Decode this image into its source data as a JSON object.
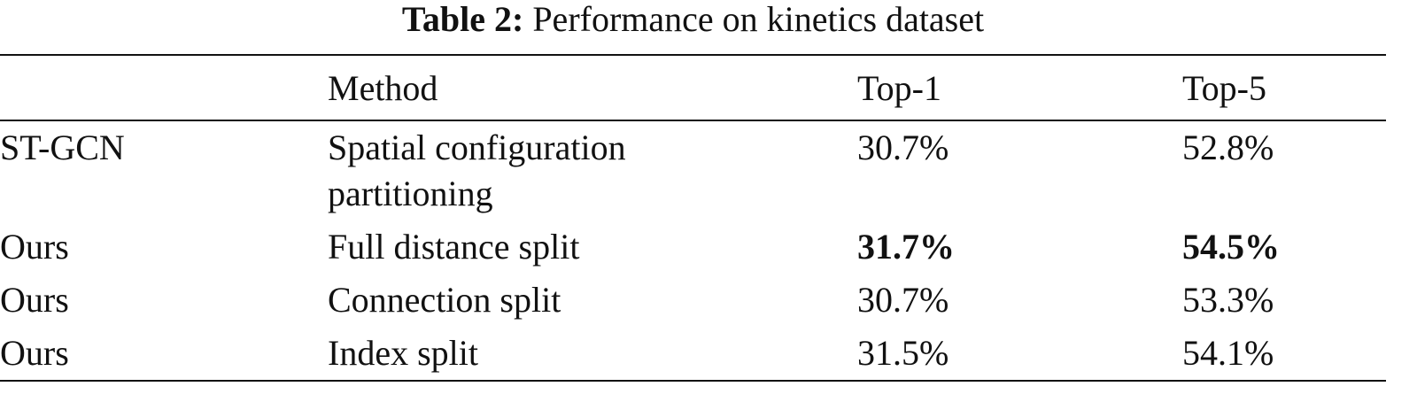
{
  "caption": {
    "label": "Table 2:",
    "text": "Performance on kinetics dataset"
  },
  "table": {
    "header": [
      "Method",
      "Top-1",
      "Top-5"
    ],
    "rows": [
      [
        {
          "text": "ST-GCN"
        },
        {
          "text": "Spatial configuration partitioning"
        },
        {
          "text": "30.7%"
        },
        {
          "text": "52.8%"
        }
      ],
      [
        {
          "text": "Ours"
        },
        {
          "text": "Full distance split"
        },
        {
          "text": "31.7%",
          "bold": true
        },
        {
          "text": "54.5%",
          "bold": true
        }
      ],
      [
        {
          "text": "Ours"
        },
        {
          "text": "Connection split"
        },
        {
          "text": "30.7%"
        },
        {
          "text": "53.3%"
        }
      ],
      [
        {
          "text": "Ours"
        },
        {
          "text": "Index split"
        },
        {
          "text": "31.5%"
        },
        {
          "text": "54.1%"
        }
      ]
    ]
  }
}
